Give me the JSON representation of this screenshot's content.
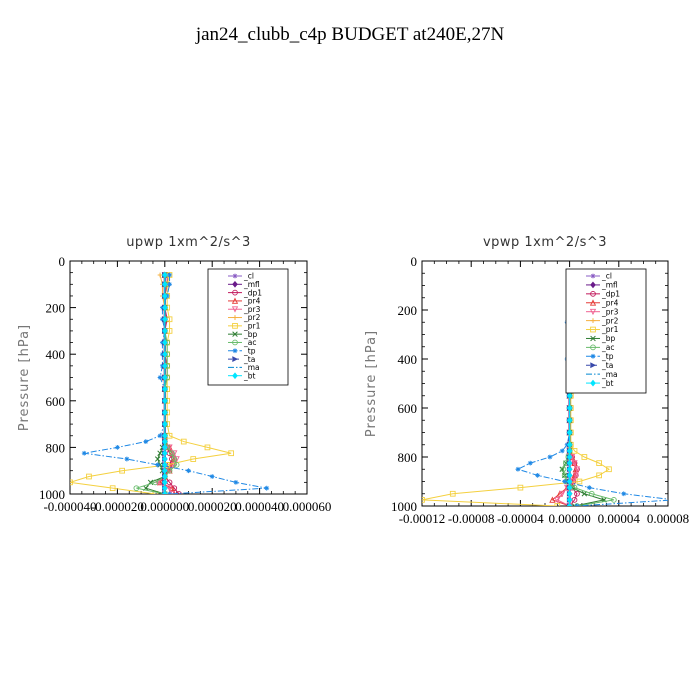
{
  "figure": {
    "title": "jan24_clubb_c4p  BUDGET at240E,27N"
  },
  "chart_data": [
    {
      "type": "line",
      "title": "upwp   1xm^2/s^3",
      "xlabel": "",
      "ylabel": "Pressure [hPa]",
      "xlim": [
        -4e-05,
        6e-05
      ],
      "ylim": [
        1000,
        0
      ],
      "y_reversed": true,
      "xtick_labels": [
        "-0.000040",
        "-0.000020",
        "0.000000",
        "0.000020",
        "0.000040",
        "0.000060"
      ],
      "xtick_values": [
        -4e-05,
        -2e-05,
        0,
        2e-05,
        4e-05,
        6e-05
      ],
      "ytick_labels": [
        "0",
        "200",
        "400",
        "600",
        "800",
        "1000"
      ],
      "ytick_values": [
        0,
        200,
        400,
        600,
        800,
        1000
      ],
      "legend_position": "top-right",
      "levels": [
        60,
        100,
        150,
        200,
        250,
        300,
        350,
        400,
        450,
        500,
        550,
        600,
        650,
        700,
        750,
        775,
        800,
        825,
        850,
        875,
        900,
        925,
        950,
        975,
        1000
      ],
      "series": [
        {
          "name": "_cl",
          "color": "#8a5cc4",
          "marker": "star",
          "dash": "solid",
          "values": [
            0,
            0,
            0,
            0,
            0,
            0,
            0,
            0,
            0,
            0,
            0,
            0,
            0,
            0,
            0,
            0,
            0,
            0,
            0,
            0,
            0,
            0,
            0,
            0,
            0
          ]
        },
        {
          "name": "_mfl",
          "color": "#6a1b8a",
          "marker": "diamond",
          "dash": "solid",
          "values": [
            0,
            0,
            0,
            0,
            0,
            0,
            0,
            0,
            0,
            0,
            0,
            0,
            0,
            0,
            0,
            0,
            0,
            0,
            0,
            0,
            0,
            0,
            0,
            0,
            0
          ]
        },
        {
          "name": "_dp1",
          "color": "#c2185b",
          "marker": "circle",
          "dash": "solid",
          "values": [
            1e-06,
            1e-06,
            0,
            0,
            1e-06,
            0,
            0,
            0,
            1e-06,
            1e-06,
            0,
            0,
            0,
            0,
            0,
            0,
            1e-06,
            2e-06,
            3e-06,
            2e-06,
            1e-06,
            0,
            2e-06,
            4e-06,
            6e-06
          ]
        },
        {
          "name": "_pr4",
          "color": "#e53935",
          "marker": "triangle",
          "dash": "solid",
          "values": [
            0,
            0,
            0,
            0,
            0,
            0,
            0,
            0,
            0,
            0,
            0,
            0,
            0,
            0,
            0,
            0,
            2e-06,
            3e-06,
            4e-06,
            3e-06,
            2e-06,
            0,
            -2e-06,
            3e-06,
            4e-06
          ]
        },
        {
          "name": "_pr3",
          "color": "#f06292",
          "marker": "triangle-down",
          "dash": "solid",
          "values": [
            0,
            0,
            0,
            0,
            0,
            0,
            0,
            0,
            0,
            0,
            0,
            0,
            0,
            0,
            0,
            0,
            2e-06,
            4e-06,
            5e-06,
            4e-06,
            2e-06,
            0,
            -3e-06,
            2e-06,
            3e-06
          ]
        },
        {
          "name": "_pr2",
          "color": "#f5b041",
          "marker": "plus",
          "dash": "solid",
          "values": [
            -2e-06,
            -1e-06,
            -1e-06,
            0,
            0,
            0,
            0,
            0,
            0,
            0,
            0,
            0,
            0,
            0,
            0,
            0,
            0,
            0,
            0,
            0,
            0,
            0,
            0,
            0,
            0
          ]
        },
        {
          "name": "_pr1",
          "color": "#f4d03f",
          "marker": "square",
          "dash": "solid",
          "values": [
            2e-06,
            1e-06,
            1e-06,
            1e-06,
            2e-06,
            2e-06,
            1e-06,
            1e-06,
            1e-06,
            1e-06,
            1e-06,
            1e-06,
            1e-06,
            1e-06,
            2e-06,
            8e-06,
            1.8e-05,
            2.8e-05,
            1.2e-05,
            1e-06,
            -1.8e-05,
            -3.2e-05,
            -4e-05,
            -2.2e-05,
            -4e-06
          ]
        },
        {
          "name": "_bp",
          "color": "#2e7d32",
          "marker": "x",
          "dash": "solid",
          "values": [
            0,
            0,
            0,
            0,
            0,
            0,
            0,
            0,
            0,
            0,
            0,
            0,
            0,
            0,
            0,
            0,
            -1e-06,
            -2e-06,
            -3e-06,
            -2e-06,
            -1e-06,
            0,
            -6e-06,
            -8e-06,
            0
          ]
        },
        {
          "name": "_ac",
          "color": "#66bb6a",
          "marker": "circle",
          "dash": "solid",
          "values": [
            0,
            0,
            0,
            0,
            0,
            0,
            1e-06,
            1e-06,
            1e-06,
            1e-06,
            0,
            0,
            0,
            0,
            0,
            0,
            1e-06,
            3e-06,
            4e-06,
            5e-06,
            2e-06,
            0,
            -4e-06,
            -1.2e-05,
            0
          ]
        },
        {
          "name": "_tp",
          "color": "#1e88e5",
          "marker": "star",
          "dash": "dashdot",
          "values": [
            2e-06,
            2e-06,
            1e-06,
            -1e-06,
            -1e-06,
            0,
            -1e-06,
            -1e-06,
            -1e-06,
            -2e-06,
            0,
            0,
            0,
            0,
            -2e-06,
            -8e-06,
            -2e-05,
            -3.4e-05,
            -1.6e-05,
            -3e-06,
            1e-05,
            2e-05,
            3e-05,
            4.3e-05,
            2e-06
          ]
        },
        {
          "name": "_ta",
          "color": "#3949ab",
          "marker": "triangle-right",
          "dash": "dashed",
          "values": [
            0,
            0,
            0,
            0,
            0,
            0,
            0,
            0,
            0,
            0,
            0,
            0,
            0,
            0,
            0,
            0,
            0,
            0,
            0,
            0,
            0,
            0,
            0,
            0,
            0
          ]
        },
        {
          "name": "_ma",
          "color": "#0288d1",
          "marker": "none",
          "dash": "dashdot",
          "values": [
            0,
            0,
            0,
            0,
            0,
            0,
            0,
            0,
            0,
            0,
            0,
            0,
            0,
            0,
            0,
            0,
            0,
            0,
            0,
            0,
            0,
            0,
            0,
            0,
            0
          ]
        },
        {
          "name": "_bt",
          "color": "#00e5ff",
          "marker": "diamond",
          "dash": "solid",
          "values": [
            0,
            0,
            0,
            0,
            0,
            0,
            0,
            0,
            0,
            0,
            0,
            0,
            0,
            0,
            0,
            0,
            0,
            0,
            0,
            0,
            0,
            0,
            0,
            0,
            0
          ]
        }
      ]
    },
    {
      "type": "line",
      "title": "vpwp   1xm^2/s^3",
      "xlabel": "",
      "ylabel": "Pressure [hPa]",
      "xlim": [
        -0.00012,
        8e-05
      ],
      "ylim": [
        1000,
        0
      ],
      "y_reversed": true,
      "xtick_labels": [
        "-0.00012",
        "-0.00008",
        "-0.00004",
        "0.00000",
        "0.00004",
        "0.00008"
      ],
      "xtick_values": [
        -0.00012,
        -8e-05,
        -4e-05,
        0,
        4e-05,
        8e-05
      ],
      "ytick_labels": [
        "0",
        "200",
        "400",
        "600",
        "800",
        "1000"
      ],
      "ytick_values": [
        0,
        200,
        400,
        600,
        800,
        1000
      ],
      "legend_position": "top-right",
      "levels": [
        60,
        100,
        150,
        200,
        250,
        300,
        350,
        400,
        450,
        500,
        550,
        600,
        650,
        700,
        750,
        775,
        800,
        825,
        850,
        875,
        900,
        925,
        950,
        975,
        1000
      ],
      "series": [
        {
          "name": "_cl",
          "color": "#8a5cc4",
          "marker": "star",
          "dash": "solid",
          "values": [
            0,
            0,
            0,
            0,
            0,
            0,
            0,
            0,
            0,
            0,
            0,
            0,
            0,
            0,
            0,
            0,
            0,
            0,
            0,
            0,
            0,
            0,
            0,
            0,
            0
          ]
        },
        {
          "name": "_mfl",
          "color": "#6a1b8a",
          "marker": "diamond",
          "dash": "solid",
          "values": [
            0,
            0,
            0,
            0,
            0,
            0,
            0,
            0,
            0,
            0,
            0,
            0,
            0,
            0,
            0,
            0,
            0,
            0,
            0,
            0,
            0,
            0,
            0,
            0,
            0
          ]
        },
        {
          "name": "_dp1",
          "color": "#c2185b",
          "marker": "circle",
          "dash": "solid",
          "values": [
            0,
            0,
            0,
            0,
            0,
            0,
            0,
            0,
            0,
            0,
            0,
            0,
            0,
            0,
            0,
            0,
            2e-06,
            4e-06,
            6e-06,
            5e-06,
            3e-06,
            2e-06,
            6e-06,
            4e-06,
            0
          ]
        },
        {
          "name": "_pr4",
          "color": "#e53935",
          "marker": "triangle",
          "dash": "solid",
          "values": [
            0,
            0,
            0,
            0,
            0,
            0,
            0,
            0,
            0,
            0,
            0,
            0,
            0,
            0,
            0,
            0,
            2e-06,
            4e-06,
            5e-06,
            4e-06,
            2e-06,
            -2e-06,
            -8e-06,
            -1.4e-05,
            0
          ]
        },
        {
          "name": "_pr3",
          "color": "#f06292",
          "marker": "triangle-down",
          "dash": "solid",
          "values": [
            0,
            0,
            0,
            0,
            0,
            0,
            0,
            0,
            0,
            0,
            0,
            0,
            0,
            0,
            0,
            0,
            2e-06,
            4e-06,
            6e-06,
            5e-06,
            3e-06,
            -2e-06,
            -6e-06,
            -1e-05,
            0
          ]
        },
        {
          "name": "_pr2",
          "color": "#f5b041",
          "marker": "plus",
          "dash": "solid",
          "values": [
            0,
            0,
            0,
            0,
            0,
            0,
            0,
            0,
            0,
            0,
            0,
            0,
            0,
            0,
            0,
            0,
            0,
            0,
            0,
            0,
            0,
            0,
            0,
            0,
            0
          ]
        },
        {
          "name": "_pr1",
          "color": "#f4d03f",
          "marker": "square",
          "dash": "solid",
          "values": [
            1e-06,
            1e-06,
            1e-06,
            1e-06,
            1e-06,
            1e-06,
            1e-06,
            1e-06,
            1e-06,
            1e-06,
            1e-06,
            1e-06,
            1e-06,
            1e-06,
            1e-06,
            4e-06,
            1.2e-05,
            2.4e-05,
            3.2e-05,
            2.4e-05,
            8e-06,
            -4e-05,
            -9.5e-05,
            -0.00012,
            -1e-05
          ]
        },
        {
          "name": "_bp",
          "color": "#2e7d32",
          "marker": "x",
          "dash": "solid",
          "values": [
            0,
            0,
            0,
            0,
            0,
            0,
            0,
            0,
            0,
            0,
            0,
            0,
            0,
            0,
            0,
            0,
            -1e-06,
            -3e-06,
            -6e-06,
            -4e-06,
            -2e-06,
            2e-06,
            1.2e-05,
            2.8e-05,
            4e-06
          ]
        },
        {
          "name": "_ac",
          "color": "#66bb6a",
          "marker": "circle",
          "dash": "solid",
          "values": [
            0,
            0,
            0,
            0,
            0,
            0,
            0,
            0,
            0,
            0,
            0,
            0,
            0,
            0,
            0,
            0,
            -1e-06,
            -3e-06,
            -5e-06,
            -4e-06,
            -2e-06,
            4e-06,
            1.8e-05,
            3.6e-05,
            6e-06
          ]
        },
        {
          "name": "_tp",
          "color": "#1e88e5",
          "marker": "star",
          "dash": "dashdot",
          "values": [
            0,
            0,
            0,
            0,
            -2e-06,
            0,
            0,
            -2e-06,
            0,
            0,
            0,
            0,
            0,
            0,
            -2e-06,
            -6e-06,
            -1.6e-05,
            -3.2e-05,
            -4.2e-05,
            -2.6e-05,
            -4e-06,
            1.6e-05,
            4.4e-05,
            8.5e-05,
            6e-06
          ]
        },
        {
          "name": "_ta",
          "color": "#3949ab",
          "marker": "triangle-right",
          "dash": "dashed",
          "values": [
            0,
            0,
            0,
            0,
            0,
            0,
            0,
            0,
            0,
            0,
            0,
            0,
            0,
            0,
            0,
            0,
            0,
            0,
            0,
            0,
            0,
            0,
            0,
            0,
            0
          ]
        },
        {
          "name": "_ma",
          "color": "#0288d1",
          "marker": "none",
          "dash": "dashdot",
          "values": [
            0,
            0,
            0,
            0,
            0,
            0,
            0,
            0,
            0,
            0,
            0,
            0,
            0,
            0,
            0,
            0,
            0,
            0,
            0,
            0,
            0,
            0,
            0,
            0,
            0
          ]
        },
        {
          "name": "_bt",
          "color": "#00e5ff",
          "marker": "diamond",
          "dash": "solid",
          "values": [
            0,
            0,
            0,
            0,
            0,
            0,
            0,
            0,
            0,
            0,
            0,
            0,
            0,
            0,
            0,
            0,
            0,
            0,
            0,
            0,
            0,
            0,
            0,
            0,
            0
          ]
        }
      ]
    }
  ]
}
